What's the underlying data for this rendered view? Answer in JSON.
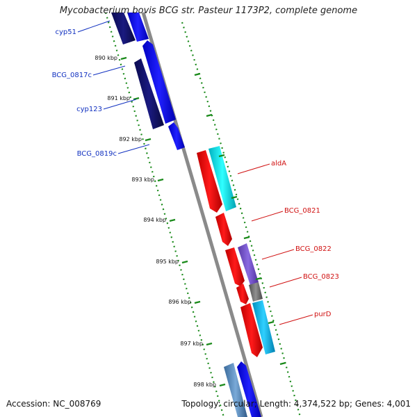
{
  "title": "Mycobacterium bovis BCG str. Pasteur 1173P2, complete genome",
  "footer": {
    "accession": "Accession: NC_008769",
    "summary": "Topology: circular; Length: 4,374,522 bp; Genes: 4,001"
  },
  "colors": {
    "backbone": "#888888",
    "tick_green": "#1a8a1a",
    "label_forward": "#1030c0",
    "label_reverse": "#d01010"
  },
  "kbp_ticks": [
    "890 kbp",
    "891 kbp",
    "892 kbp",
    "893 kbp",
    "894 kbp",
    "895 kbp",
    "896 kbp",
    "897 kbp",
    "898 kbp"
  ],
  "genes_left": [
    {
      "name": "cyp51",
      "color": "#1030c0"
    },
    {
      "name": "BCG_0817c",
      "color": "#1030c0"
    },
    {
      "name": "cyp123",
      "color": "#1030c0"
    },
    {
      "name": "BCG_0819c",
      "color": "#1030c0"
    }
  ],
  "genes_right": [
    {
      "name": "aldA",
      "color": "#d01010"
    },
    {
      "name": "BCG_0821",
      "color": "#d01010"
    },
    {
      "name": "BCG_0822",
      "color": "#d01010"
    },
    {
      "name": "BCG_0823",
      "color": "#d01010"
    },
    {
      "name": "purD",
      "color": "#d01010"
    }
  ]
}
